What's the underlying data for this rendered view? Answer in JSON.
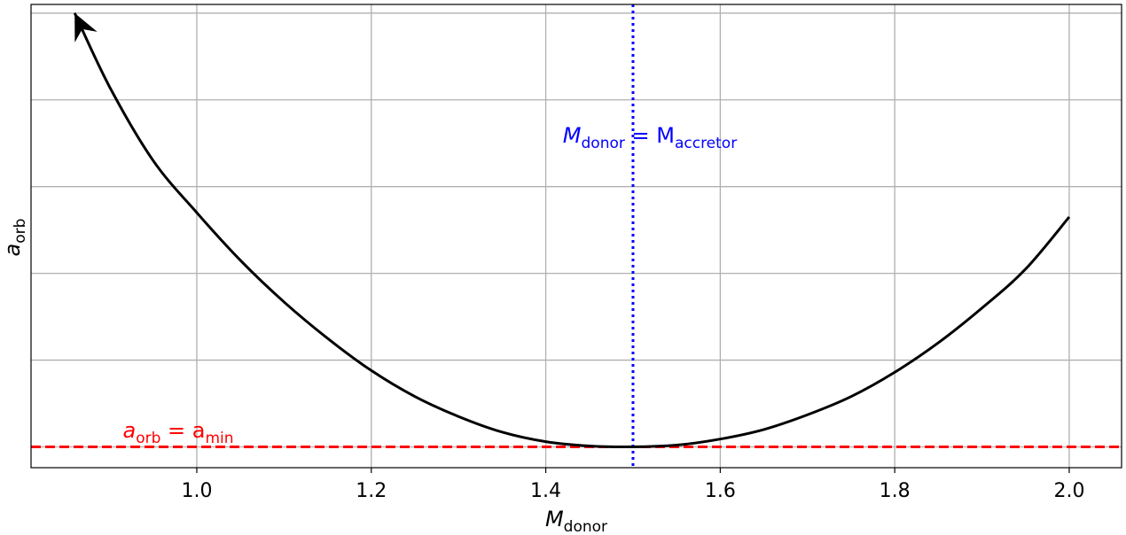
{
  "chart_data": {
    "type": "line",
    "xlabel": "M",
    "xlabel_sub": "donor",
    "ylabel": "a",
    "ylabel_sub": "orb",
    "xlim": [
      0.81,
      2.06
    ],
    "ylim": [
      -0.24,
      5.1
    ],
    "x_ticks": [
      1.0,
      1.2,
      1.4,
      1.6,
      1.8,
      2.0
    ],
    "x_tick_labels": [
      "1.0",
      "1.2",
      "1.4",
      "1.6",
      "1.8",
      "2.0"
    ],
    "y_gridlines": [
      0,
      1,
      2,
      3,
      4,
      5
    ],
    "y_tick_labels_shown": false,
    "grid": true,
    "series": [
      {
        "color": "#000000",
        "style": "solid",
        "x": [
          0.86,
          0.9,
          0.95,
          1.0,
          1.05,
          1.1,
          1.15,
          1.2,
          1.25,
          1.3,
          1.35,
          1.4,
          1.45,
          1.5,
          1.55,
          1.6,
          1.65,
          1.7,
          1.75,
          1.8,
          1.85,
          1.9,
          1.95,
          2.0
        ],
        "y": [
          5.0,
          4.15,
          3.3,
          2.7,
          2.15,
          1.67,
          1.25,
          0.88,
          0.58,
          0.35,
          0.17,
          0.06,
          0.01,
          0.0,
          0.02,
          0.09,
          0.2,
          0.37,
          0.58,
          0.86,
          1.2,
          1.6,
          2.05,
          2.65
        ],
        "end_marker": "arrow-at-start"
      }
    ],
    "hlines": [
      {
        "y": 0.0,
        "color": "#ff0000",
        "style": "dashed",
        "label_main": "a",
        "label_sub1": "orb",
        "label_mid": " = a",
        "label_sub2": "min"
      }
    ],
    "vlines": [
      {
        "x": 1.5,
        "color": "#0000ff",
        "style": "dotted",
        "label_main": "M",
        "label_sub1": "donor",
        "label_mid": " = M",
        "label_sub2": "accretor"
      }
    ]
  }
}
